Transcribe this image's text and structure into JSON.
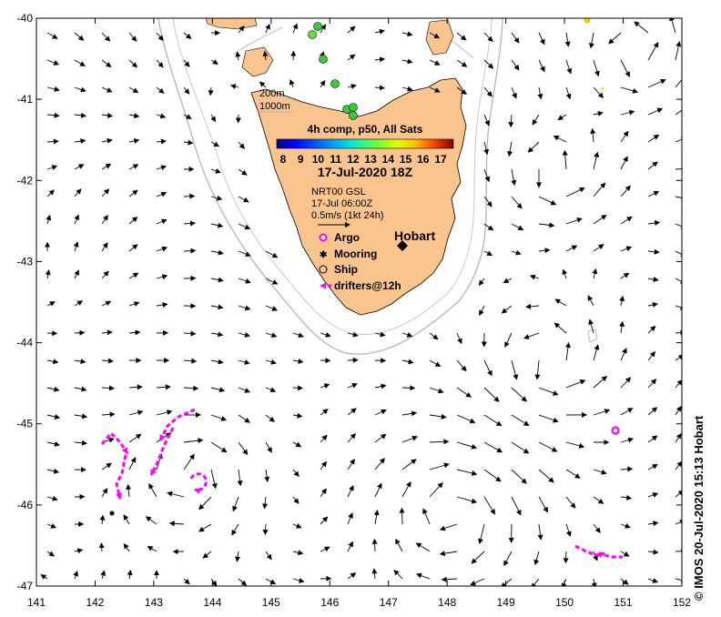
{
  "map": {
    "lon_range": [
      141,
      152
    ],
    "lat_range": [
      -47,
      -40
    ],
    "x_ticks": [
      "141",
      "142",
      "143",
      "144",
      "145",
      "146",
      "147",
      "148",
      "149",
      "150",
      "151",
      "152"
    ],
    "y_ticks": [
      "-40",
      "-41",
      "-42",
      "-43",
      "-44",
      "-45",
      "-46",
      "-47"
    ],
    "land_color": "#f9c48e",
    "isobath_color": "#b4b4b4"
  },
  "legend": {
    "isobath_200": "200m",
    "isobath_1000": "1000m",
    "colorbar_title": "4h comp, p50, All Sats",
    "colorbar_ticks": [
      "8",
      "9",
      "10",
      "11",
      "12",
      "13",
      "14",
      "15",
      "16",
      "17"
    ],
    "colorbar_colors": [
      "#00007f",
      "#0000ff",
      "#0080ff",
      "#00e0ff",
      "#40ff60",
      "#a0ff00",
      "#ffd000",
      "#ff8000",
      "#ff2000",
      "#800000"
    ],
    "date": "17-Jul-2020 18Z",
    "current_source": "NRT00 GSL",
    "current_time": "17-Jul 06:00Z",
    "scale_label": "0.5m/s (1kt 24h)",
    "symbols": [
      {
        "label": "Argo",
        "icon": "argo-icon"
      },
      {
        "label": "Mooring",
        "icon": "mooring-icon"
      },
      {
        "label": "Ship",
        "icon": "ship-icon"
      },
      {
        "label": "drifters@12h",
        "icon": "drifter-icon"
      }
    ]
  },
  "places": {
    "hobart": "Hobart"
  },
  "credit": "© IMOS 20-Jul-2020 15:13 Hobart"
}
